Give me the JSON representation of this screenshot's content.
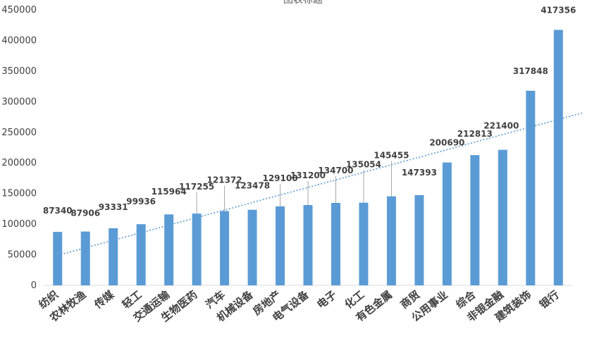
{
  "chart_data": {
    "type": "bar",
    "title": "图表标题",
    "xlabel": "",
    "ylabel": "",
    "ylim": [
      0,
      450000
    ],
    "yticks": [
      0,
      50000,
      100000,
      150000,
      200000,
      250000,
      300000,
      350000,
      400000,
      450000
    ],
    "grid": false,
    "legend": "none",
    "trendline": {
      "type": "linear",
      "style": "dotted"
    },
    "categories": [
      "纺织",
      "农林牧渔",
      "传媒",
      "轻工",
      "交通运输",
      "生物医药",
      "汽车",
      "机械设备",
      "房地产",
      "电气设备",
      "电子",
      "化工",
      "有色金属",
      "商贸",
      "公用事业",
      "综合",
      "非银金融",
      "建筑装饰",
      "银行"
    ],
    "values": [
      87340,
      87906,
      93331,
      99936,
      115964,
      117255,
      121372,
      123478,
      129100,
      131200,
      134700,
      135054,
      145455,
      147393,
      200690,
      212813,
      221400,
      317848,
      417356
    ],
    "labels_shown": [
      true,
      true,
      true,
      true,
      true,
      true,
      true,
      true,
      true,
      true,
      true,
      true,
      true,
      true,
      true,
      true,
      true,
      true,
      true
    ],
    "colors": {
      "bar": "#5B9BD5",
      "trend": "#5B9BD5",
      "axis": "#D9D9D9",
      "text": "#404040"
    }
  }
}
